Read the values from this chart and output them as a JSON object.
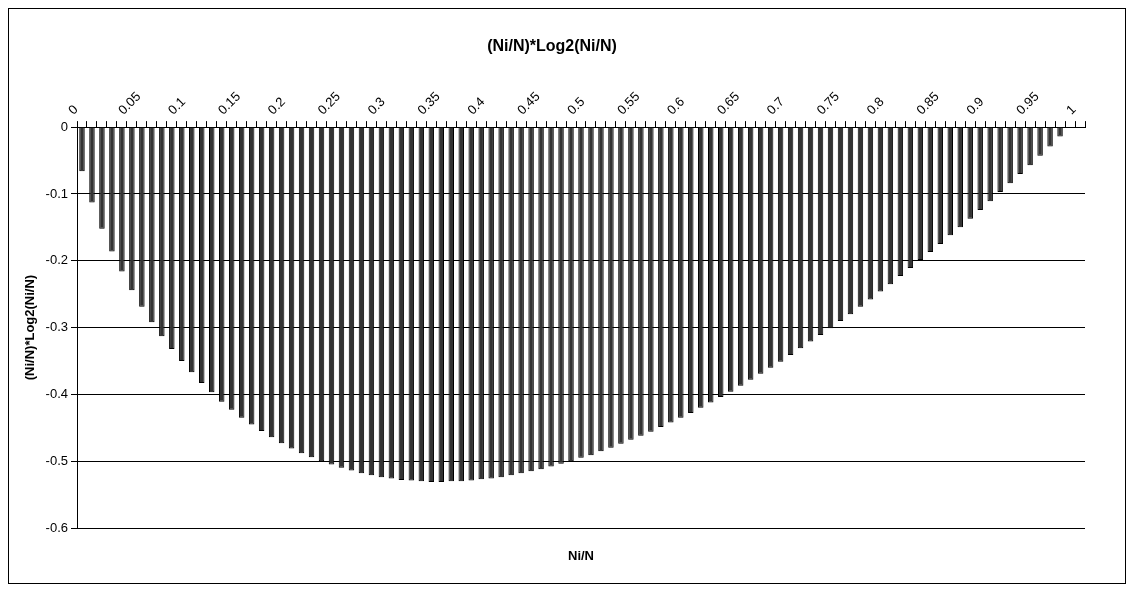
{
  "chart_data": {
    "type": "bar",
    "title": "(Ni/N)*Log2(Ni/N)",
    "xlabel": "Ni/N",
    "ylabel": "(Ni/N)*Log2(Ni/N)",
    "categories": [
      "0",
      null,
      null,
      null,
      null,
      "0.05",
      null,
      null,
      null,
      null,
      "0.1",
      null,
      null,
      null,
      null,
      "0.15",
      null,
      null,
      null,
      null,
      "0.2",
      null,
      null,
      null,
      null,
      "0.25",
      null,
      null,
      null,
      null,
      "0.3",
      null,
      null,
      null,
      null,
      "0.35",
      null,
      null,
      null,
      null,
      "0.4",
      null,
      null,
      null,
      null,
      "0.45",
      null,
      null,
      null,
      null,
      "0.5",
      null,
      null,
      null,
      null,
      "0.55",
      null,
      null,
      null,
      null,
      "0.6",
      null,
      null,
      null,
      null,
      "0.65",
      null,
      null,
      null,
      null,
      "0.7",
      null,
      null,
      null,
      null,
      "0.75",
      null,
      null,
      null,
      null,
      "0.8",
      null,
      null,
      null,
      null,
      "0.85",
      null,
      null,
      null,
      null,
      "0.9",
      null,
      null,
      null,
      null,
      "0.95",
      null,
      null,
      null,
      null,
      "1"
    ],
    "values": [
      -0.066,
      -0.113,
      -0.152,
      -0.186,
      -0.216,
      -0.244,
      -0.269,
      -0.292,
      -0.313,
      -0.332,
      -0.35,
      -0.367,
      -0.383,
      -0.397,
      -0.411,
      -0.423,
      -0.435,
      -0.445,
      -0.455,
      -0.464,
      -0.473,
      -0.481,
      -0.488,
      -0.494,
      -0.5,
      -0.505,
      -0.51,
      -0.514,
      -0.518,
      -0.521,
      -0.524,
      -0.526,
      -0.528,
      -0.529,
      -0.53,
      -0.531,
      -0.531,
      -0.53,
      -0.53,
      -0.529,
      -0.527,
      -0.526,
      -0.524,
      -0.521,
      -0.518,
      -0.515,
      -0.512,
      -0.508,
      -0.504,
      -0.5,
      -0.495,
      -0.491,
      -0.485,
      -0.48,
      -0.474,
      -0.468,
      -0.462,
      -0.456,
      -0.449,
      -0.442,
      -0.435,
      -0.428,
      -0.42,
      -0.412,
      -0.404,
      -0.396,
      -0.387,
      -0.378,
      -0.369,
      -0.36,
      -0.351,
      -0.341,
      -0.331,
      -0.321,
      -0.311,
      -0.301,
      -0.29,
      -0.28,
      -0.269,
      -0.258,
      -0.246,
      -0.235,
      -0.223,
      -0.211,
      -0.199,
      -0.187,
      -0.175,
      -0.162,
      -0.15,
      -0.137,
      -0.124,
      -0.111,
      -0.097,
      -0.084,
      -0.07,
      -0.057,
      -0.043,
      -0.029,
      -0.014,
      null,
      null
    ],
    "color": "#333333",
    "ylim": [
      -0.6,
      0
    ],
    "yticks": [
      0,
      -0.1,
      -0.2,
      -0.3,
      -0.4,
      -0.5,
      -0.6
    ],
    "grid": "y",
    "legend": false
  }
}
